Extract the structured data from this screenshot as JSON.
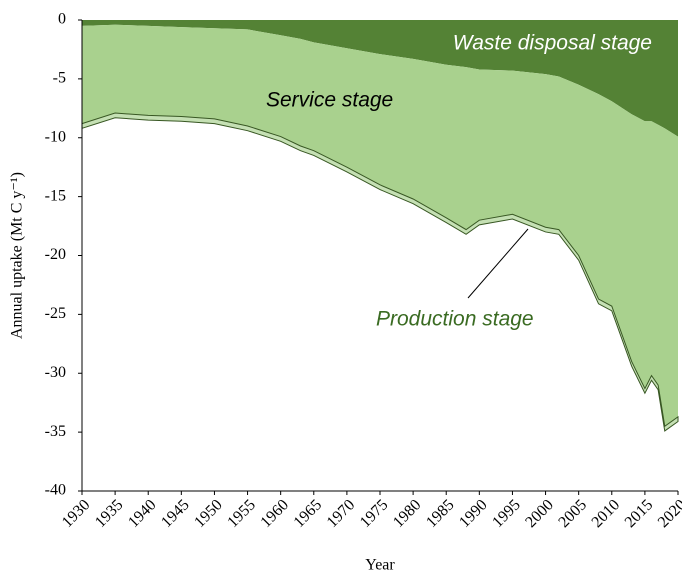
{
  "chart_data": {
    "type": "stacked_area",
    "x_label": "Year",
    "y_label": "Annual uptake (Mt C y⁻¹)",
    "x": [
      1930,
      1935,
      1940,
      1945,
      1950,
      1955,
      1960,
      1963,
      1965,
      1970,
      1975,
      1980,
      1985,
      1988,
      1990,
      1995,
      2000,
      2002,
      2005,
      2008,
      2010,
      2013,
      2015,
      2016,
      2017,
      2018,
      2020
    ],
    "series": [
      {
        "name": "Waste disposal stage",
        "color": "#548235",
        "values": [
          -0.5,
          -0.4,
          -0.5,
          -0.6,
          -0.7,
          -0.8,
          -1.3,
          -1.6,
          -1.9,
          -2.4,
          -2.9,
          -3.3,
          -3.8,
          -4.0,
          -4.2,
          -4.3,
          -4.6,
          -4.8,
          -5.5,
          -6.3,
          -6.9,
          -8.0,
          -8.6,
          -8.6,
          -8.9,
          -9.2,
          -9.9
        ]
      },
      {
        "name": "Service stage",
        "color": "#a9d18e",
        "values": [
          -8.3,
          -7.5,
          -7.6,
          -7.6,
          -7.7,
          -8.2,
          -8.6,
          -9.1,
          -9.2,
          -10.1,
          -11.1,
          -11.9,
          -13.0,
          -13.8,
          -12.8,
          -12.2,
          -13.0,
          -13.0,
          -14.5,
          -17.4,
          -17.4,
          -21.0,
          -22.7,
          -21.6,
          -22.1,
          -25.3,
          -23.8
        ]
      },
      {
        "name": "Production stage",
        "color": "#c5e0b4",
        "values": [
          -0.4,
          -0.4,
          -0.4,
          -0.4,
          -0.4,
          -0.4,
          -0.4,
          -0.4,
          -0.4,
          -0.4,
          -0.4,
          -0.4,
          -0.4,
          -0.4,
          -0.4,
          -0.4,
          -0.4,
          -0.4,
          -0.4,
          -0.4,
          -0.4,
          -0.4,
          -0.4,
          -0.4,
          -0.4,
          -0.4,
          -0.4
        ]
      }
    ],
    "xlim": [
      1930,
      2020
    ],
    "xticks": [
      1930,
      1935,
      1940,
      1945,
      1950,
      1955,
      1960,
      1965,
      1970,
      1975,
      1980,
      1985,
      1990,
      1995,
      2000,
      2005,
      2010,
      2015,
      2020
    ],
    "ylim": [
      -40,
      0
    ],
    "yticks": [
      0,
      -5,
      -10,
      -15,
      -20,
      -25,
      -30,
      -35,
      -40
    ]
  }
}
